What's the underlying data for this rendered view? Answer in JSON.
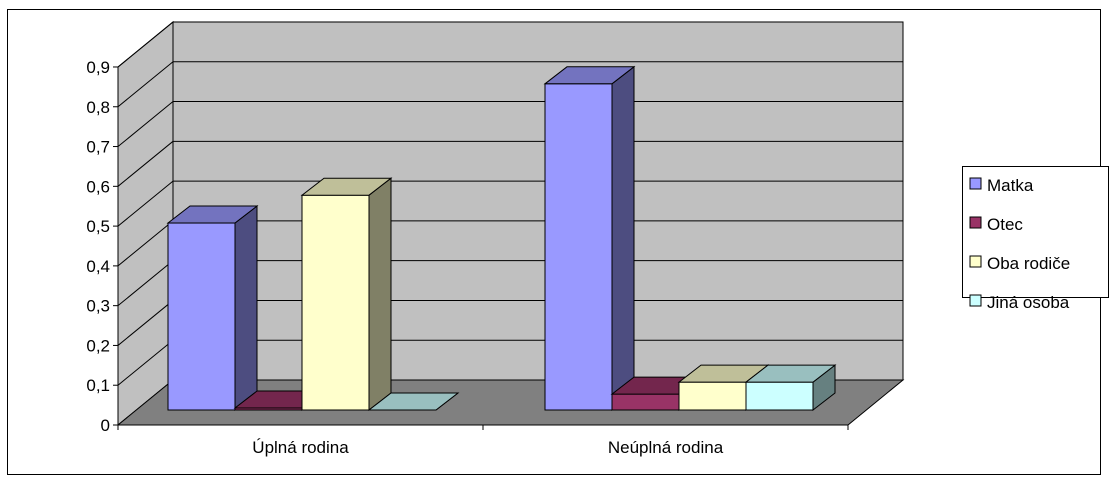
{
  "chart_data": {
    "type": "bar",
    "categories": [
      "Úplná rodina",
      "Neúplná rodina"
    ],
    "series": [
      {
        "name": "Matka",
        "values": [
          0.47,
          0.82
        ],
        "color": "#9999FF"
      },
      {
        "name": "Otec",
        "values": [
          0.005,
          0.04
        ],
        "color": "#993366"
      },
      {
        "name": "Oba rodiče",
        "values": [
          0.54,
          0.07
        ],
        "color": "#FFFFCC"
      },
      {
        "name": "Jiná osoba",
        "values": [
          0.0,
          0.07
        ],
        "color": "#CCFFFF"
      }
    ],
    "yticks": [
      "0",
      "0,1",
      "0,2",
      "0,3",
      "0,4",
      "0,5",
      "0,6",
      "0,7",
      "0,8",
      "0,9"
    ],
    "ylim": [
      0,
      0.9
    ],
    "legend_position": "right",
    "grid": true,
    "wall_color": "#C0C0C0",
    "floor_color": "#808080"
  }
}
